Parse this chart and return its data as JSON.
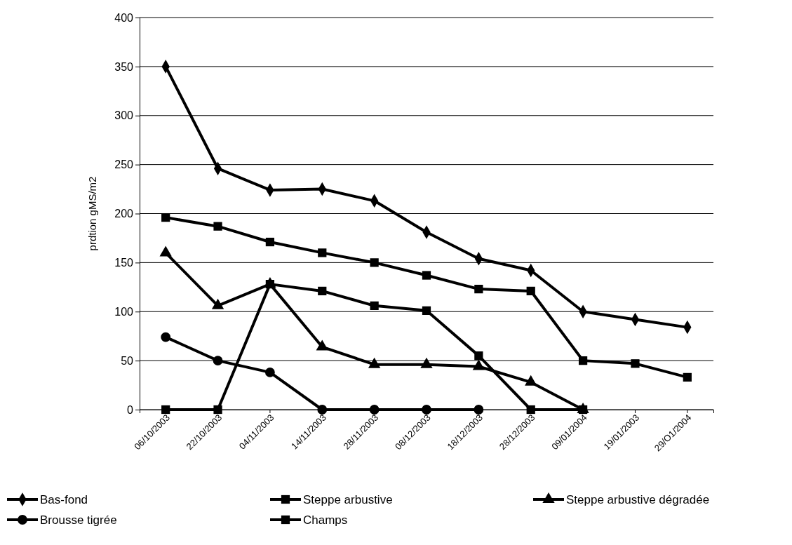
{
  "chart_data": {
    "type": "line",
    "ylabel": "prdtion gMS/m2",
    "categories": [
      "06/10/2003",
      "22/10/2003",
      "04/11/2003",
      "14/11/2003",
      "28/11/2003",
      "08/12/2003",
      "18/12/2003",
      "28/12/2003",
      "09/01/2004",
      "19/01/2003",
      "29/O1/2004"
    ],
    "series": [
      {
        "name": "Bas-fond",
        "color": "#000000",
        "marker": "diamond",
        "values": [
          350,
          246,
          224,
          225,
          213,
          181,
          154,
          142,
          100,
          92,
          84
        ]
      },
      {
        "name": "Steppe arbustive",
        "color": "#000000",
        "marker": "square",
        "values": [
          196,
          187,
          171,
          160,
          150,
          137,
          123,
          121,
          50,
          47,
          33
        ]
      },
      {
        "name": "Steppe arbustive dégradée",
        "color": "#000000",
        "marker": "triangle",
        "values": [
          160,
          106,
          128,
          64,
          46,
          46,
          44,
          28,
          0,
          null,
          null
        ]
      },
      {
        "name": "Brousse tigrée",
        "color": "#000000",
        "marker": "circle",
        "values": [
          74,
          50,
          38,
          0,
          0,
          0,
          0,
          null,
          null,
          null,
          null
        ]
      },
      {
        "name": "Champs",
        "color": "#000000",
        "marker": "square",
        "values": [
          0,
          0,
          128,
          121,
          106,
          101,
          55,
          0,
          0,
          null,
          null
        ]
      }
    ],
    "ylim": [
      0,
      400
    ],
    "yticks": [
      0,
      50,
      100,
      150,
      200,
      250,
      300,
      350,
      400
    ],
    "grid": "y",
    "legend": "bottom",
    "line_style": "solid"
  }
}
